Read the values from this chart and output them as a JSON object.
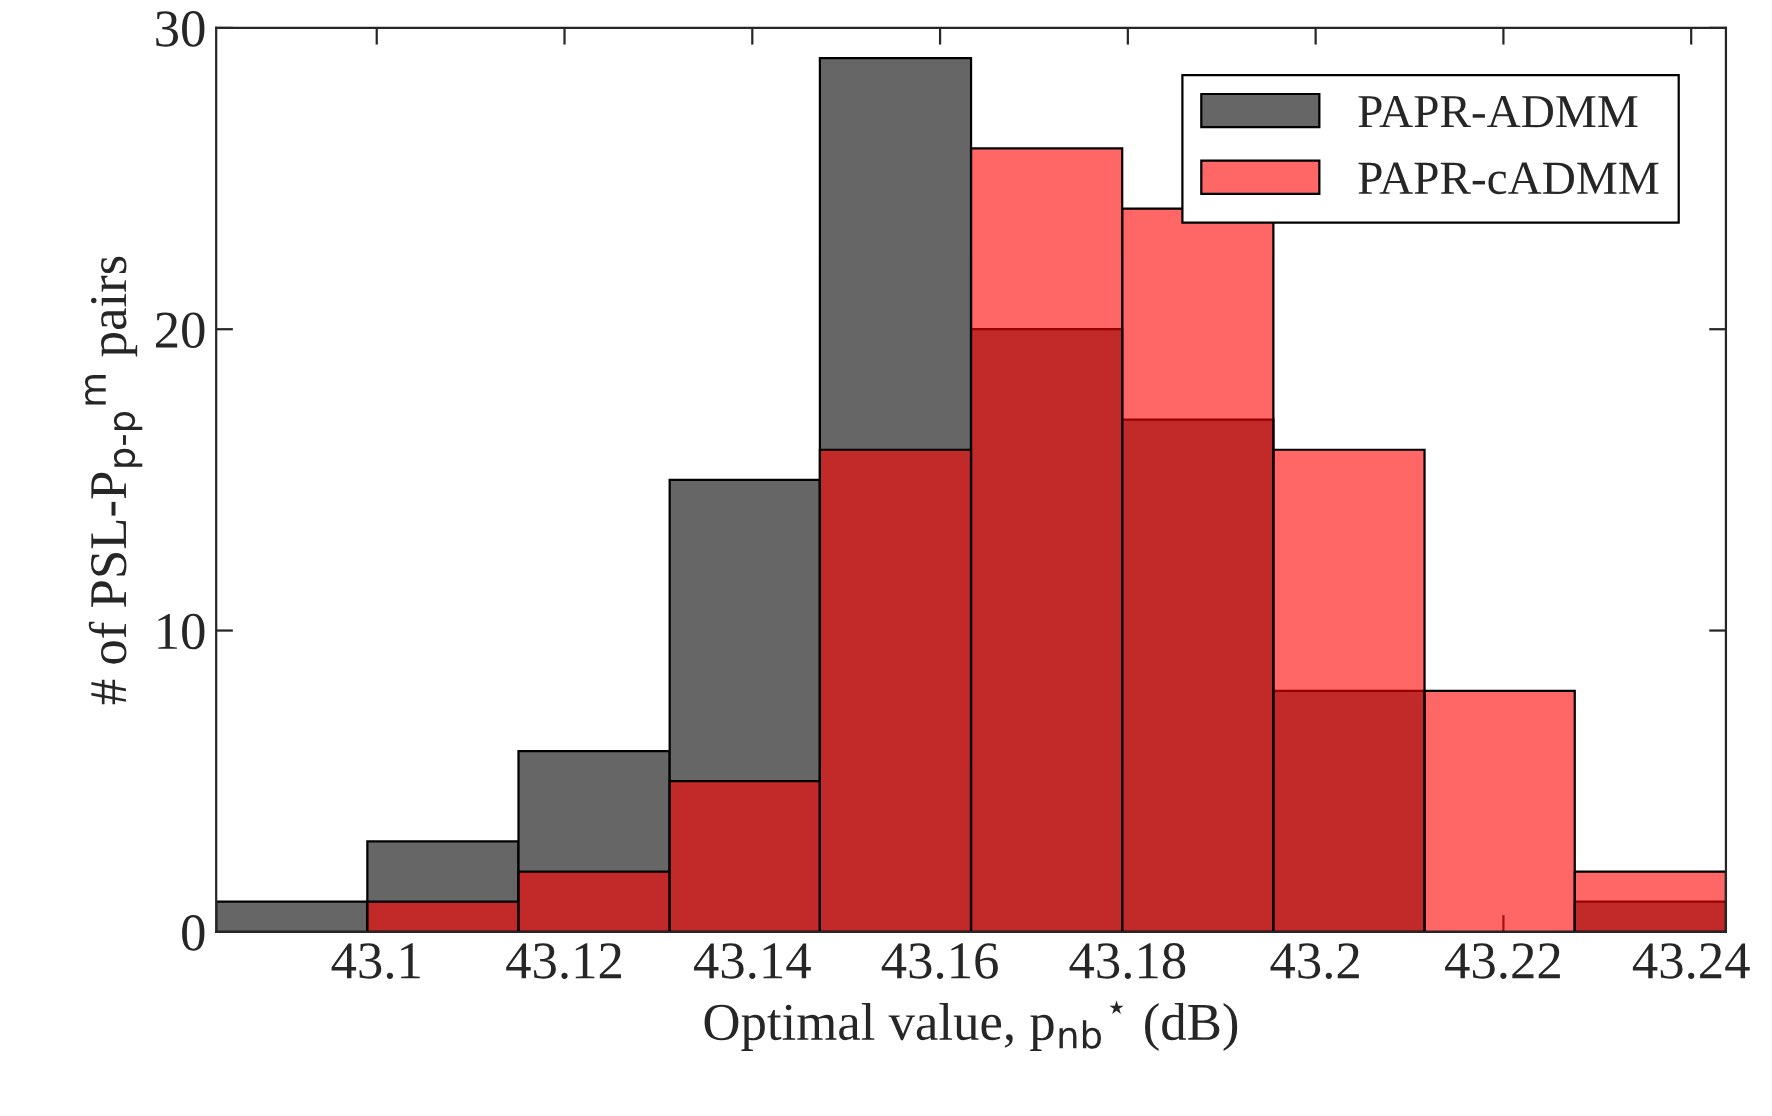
{
  "chart_data": {
    "type": "histogram",
    "xlabel": "Optimal value, p$_{nb}$$^{⋆}$ (dB)",
    "ylabel": "# of PSL-P$_{p-p}$$^{m}$ pairs",
    "bins": [
      43.0829,
      43.099,
      43.1151,
      43.1312,
      43.1472,
      43.1633,
      43.1794,
      43.1955,
      43.2116,
      43.2276,
      43.2437
    ],
    "series": [
      {
        "name": "PAPR-ADMM",
        "color": "#666666",
        "values": [
          1,
          3,
          6,
          15,
          29,
          20,
          17,
          8,
          0,
          1
        ]
      },
      {
        "name": "PAPR-cADMM",
        "color": "#ff6666",
        "values": [
          0,
          1,
          2,
          5,
          16,
          26,
          24,
          16,
          8,
          2
        ]
      }
    ],
    "xlim": [
      43.0829,
      43.2437
    ],
    "xticks": [
      43.1,
      43.12,
      43.14,
      43.16,
      43.18,
      43.2,
      43.22,
      43.24
    ],
    "ylim": [
      0,
      30
    ],
    "yticks": [
      0,
      10,
      20,
      30
    ],
    "grid": false,
    "legend": "top right"
  }
}
